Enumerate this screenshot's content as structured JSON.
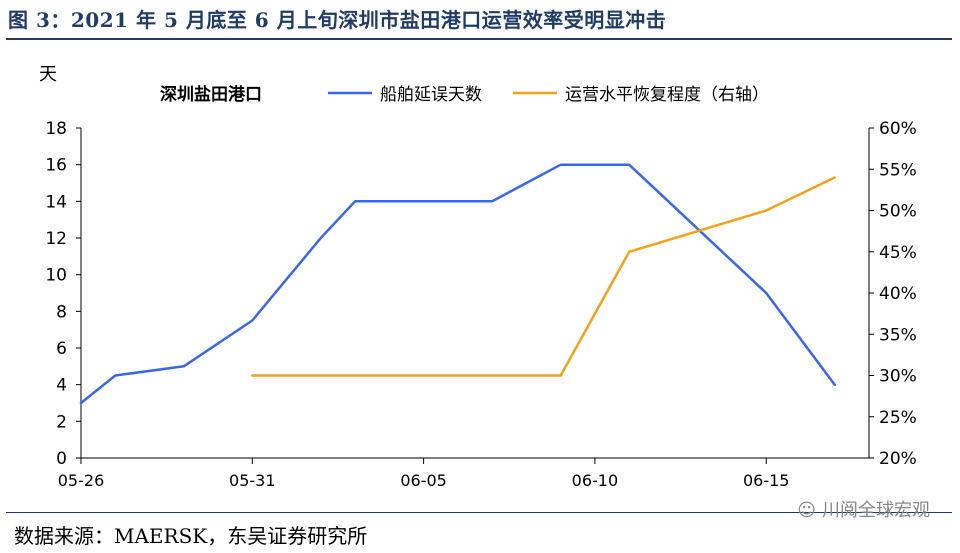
{
  "header": {
    "title": "图 3：2021 年 5 月底至 6 月上旬深圳市盐田港口运营效率受明显冲击"
  },
  "footer": {
    "source": "数据来源：MAERSK，东吴证券研究所",
    "watermark": "川阅全球宏观"
  },
  "chart_data": {
    "type": "line",
    "title": "深圳盐田港口",
    "ylabel": "天",
    "y2label": "",
    "x_ticks": [
      "05-26",
      "05-31",
      "06-05",
      "06-10",
      "06-15"
    ],
    "ylim": [
      0,
      18
    ],
    "y_ticks": [
      0,
      2,
      4,
      6,
      8,
      10,
      12,
      14,
      16,
      18
    ],
    "y2lim": [
      20,
      60
    ],
    "y2_ticks": [
      "20%",
      "25%",
      "30%",
      "35%",
      "40%",
      "45%",
      "50%",
      "55%",
      "60%"
    ],
    "y2_tick_values": [
      20,
      25,
      30,
      35,
      40,
      45,
      50,
      55,
      60
    ],
    "legend_position": "top",
    "series": [
      {
        "name": "船舶延误天数",
        "axis": "left",
        "color": "#3a66e8",
        "points": [
          {
            "x": "05-26",
            "y": 3
          },
          {
            "x": "05-27",
            "y": 4.5
          },
          {
            "x": "05-29",
            "y": 5
          },
          {
            "x": "05-31",
            "y": 7.5
          },
          {
            "x": "06-02",
            "y": 12
          },
          {
            "x": "06-03",
            "y": 14
          },
          {
            "x": "06-07",
            "y": 14
          },
          {
            "x": "06-09",
            "y": 16
          },
          {
            "x": "06-11",
            "y": 16
          },
          {
            "x": "06-15",
            "y": 9
          },
          {
            "x": "06-17",
            "y": 4
          }
        ]
      },
      {
        "name": "运营水平恢复程度（右轴）",
        "axis": "right",
        "color": "#f5a21b",
        "points": [
          {
            "x": "05-31",
            "y": 30
          },
          {
            "x": "06-09",
            "y": 30
          },
          {
            "x": "06-11",
            "y": 45
          },
          {
            "x": "06-15",
            "y": 50
          },
          {
            "x": "06-17",
            "y": 54
          }
        ]
      }
    ]
  }
}
